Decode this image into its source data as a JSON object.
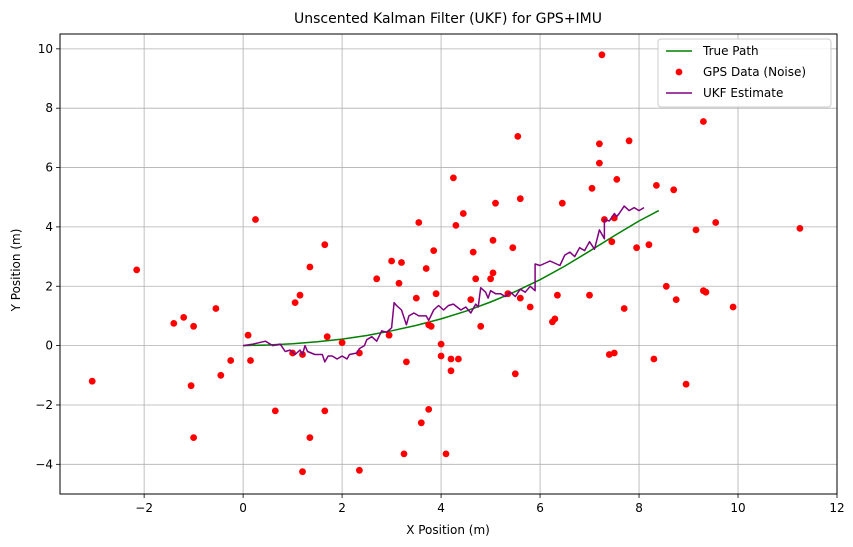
{
  "chart_data": {
    "type": "scatter",
    "title": "Unscented Kalman Filter (UKF) for GPS+IMU",
    "xlabel": "X Position (m)",
    "ylabel": "Y Position (m)",
    "xlim": [
      -3.7,
      12.0
    ],
    "ylim": [
      -5.0,
      10.5
    ],
    "xticks": [
      -2,
      0,
      2,
      4,
      6,
      8,
      10,
      12
    ],
    "yticks": [
      -4,
      -2,
      0,
      2,
      4,
      6,
      8,
      10
    ],
    "grid": true,
    "legend_position": "top-right",
    "colors": {
      "true_path": "#008000",
      "gps": "#ff0000",
      "ukf": "#800080",
      "grid": "#b0b0b0"
    },
    "series": [
      {
        "name": "True Path",
        "kind": "line",
        "x": [
          0.0,
          0.5,
          1.0,
          1.5,
          2.0,
          2.5,
          3.0,
          3.5,
          4.0,
          4.5,
          5.0,
          5.5,
          6.0,
          6.5,
          7.0,
          7.5,
          8.0,
          8.4
        ],
        "y": [
          0.0,
          0.02,
          0.06,
          0.13,
          0.22,
          0.34,
          0.5,
          0.68,
          0.9,
          1.16,
          1.47,
          1.82,
          2.22,
          2.68,
          3.18,
          3.7,
          4.2,
          4.55
        ]
      },
      {
        "name": "GPS Data (Noise)",
        "kind": "scatter",
        "x": [
          -3.05,
          -2.15,
          -1.4,
          -1.2,
          -1.0,
          -1.05,
          -0.55,
          -0.45,
          -0.25,
          0.1,
          0.15,
          0.25,
          0.65,
          1.0,
          1.05,
          1.15,
          1.2,
          1.35,
          1.35,
          1.65,
          1.65,
          1.7,
          1.2,
          2.0,
          2.35,
          2.35,
          2.7,
          2.95,
          3.0,
          3.15,
          3.2,
          3.25,
          3.3,
          3.5,
          3.55,
          3.6,
          3.7,
          3.75,
          3.75,
          3.8,
          3.85,
          3.9,
          4.0,
          4.0,
          4.1,
          4.2,
          4.2,
          4.25,
          4.3,
          4.35,
          4.45,
          4.6,
          4.65,
          4.7,
          4.8,
          5.0,
          5.05,
          5.05,
          5.1,
          5.35,
          5.45,
          5.5,
          5.55,
          5.6,
          5.6,
          5.8,
          6.25,
          6.3,
          6.35,
          6.45,
          7.0,
          7.05,
          7.2,
          7.2,
          7.25,
          7.3,
          7.4,
          7.45,
          7.5,
          7.5,
          7.55,
          7.7,
          7.8,
          7.95,
          8.2,
          8.3,
          8.35,
          8.55,
          8.7,
          8.75,
          8.95,
          9.15,
          9.3,
          9.3,
          9.35,
          9.55,
          9.9,
          11.25,
          -1.0
        ],
        "y": [
          -1.2,
          2.55,
          0.75,
          0.95,
          0.65,
          -1.35,
          1.25,
          -1.0,
          -0.5,
          0.35,
          -0.5,
          4.25,
          -2.2,
          -0.25,
          1.45,
          1.7,
          -0.3,
          2.65,
          -3.1,
          3.4,
          -2.2,
          0.3,
          -4.25,
          0.1,
          -0.25,
          -4.2,
          2.25,
          0.35,
          2.85,
          2.1,
          2.8,
          -3.65,
          -0.55,
          1.6,
          4.15,
          -2.6,
          2.6,
          0.7,
          -2.15,
          0.65,
          3.2,
          1.75,
          -0.35,
          0.05,
          -3.65,
          -0.45,
          -0.85,
          5.65,
          4.05,
          -0.45,
          4.45,
          1.55,
          3.15,
          2.25,
          0.65,
          2.25,
          2.45,
          3.55,
          4.8,
          1.75,
          3.3,
          -0.95,
          7.05,
          4.95,
          1.6,
          1.3,
          0.8,
          0.9,
          1.7,
          4.8,
          1.7,
          5.3,
          6.8,
          6.15,
          9.8,
          4.25,
          -0.3,
          3.5,
          4.3,
          -0.25,
          5.6,
          1.25,
          6.9,
          3.3,
          3.4,
          -0.45,
          5.4,
          2.0,
          5.25,
          1.55,
          -1.3,
          3.9,
          7.55,
          1.85,
          1.8,
          4.15,
          1.3,
          3.95,
          -3.1
        ]
      },
      {
        "name": "UKF Estimate",
        "kind": "line",
        "x": [
          0.0,
          0.2,
          0.45,
          0.6,
          0.75,
          0.85,
          0.95,
          1.05,
          1.15,
          1.2,
          1.25,
          1.3,
          1.45,
          1.6,
          1.65,
          1.72,
          1.8,
          1.9,
          2.0,
          2.1,
          2.15,
          2.3,
          2.35,
          2.45,
          2.5,
          2.6,
          2.7,
          2.8,
          2.9,
          3.0,
          3.05,
          3.1,
          3.2,
          3.3,
          3.35,
          3.45,
          3.55,
          3.7,
          3.75,
          3.85,
          3.95,
          4.05,
          4.15,
          4.25,
          4.4,
          4.5,
          4.6,
          4.7,
          4.75,
          4.8,
          4.9,
          4.95,
          5.0,
          5.1,
          5.2,
          5.3,
          5.4,
          5.5,
          5.6,
          5.7,
          5.8,
          5.9,
          5.9,
          6.0,
          6.2,
          6.4,
          6.5,
          6.6,
          6.7,
          6.8,
          6.9,
          7.0,
          7.1,
          7.2,
          7.3,
          7.3,
          7.4,
          7.5,
          7.55,
          7.6,
          7.7,
          7.8,
          7.9,
          8.0,
          8.1
        ],
        "y": [
          0.0,
          0.05,
          0.15,
          0.0,
          0.05,
          -0.2,
          -0.15,
          -0.3,
          -0.15,
          -0.3,
          0.0,
          -0.2,
          -0.3,
          -0.3,
          -0.55,
          -0.35,
          -0.35,
          -0.45,
          -0.35,
          -0.45,
          -0.3,
          -0.25,
          -0.1,
          0.0,
          0.2,
          0.3,
          0.15,
          0.5,
          0.45,
          0.6,
          1.45,
          1.35,
          1.2,
          0.7,
          1.0,
          1.1,
          1.0,
          1.0,
          0.85,
          1.2,
          1.35,
          1.2,
          1.35,
          1.4,
          1.2,
          1.3,
          1.1,
          1.4,
          1.3,
          1.95,
          1.8,
          1.6,
          1.85,
          1.75,
          1.75,
          1.65,
          1.8,
          1.65,
          1.9,
          1.8,
          2.0,
          1.85,
          2.75,
          2.7,
          2.85,
          2.7,
          3.05,
          3.15,
          3.0,
          3.3,
          3.2,
          3.5,
          3.25,
          3.9,
          3.6,
          4.25,
          4.2,
          4.45,
          4.35,
          4.45,
          4.7,
          4.55,
          4.65,
          4.55,
          4.65
        ]
      }
    ]
  }
}
